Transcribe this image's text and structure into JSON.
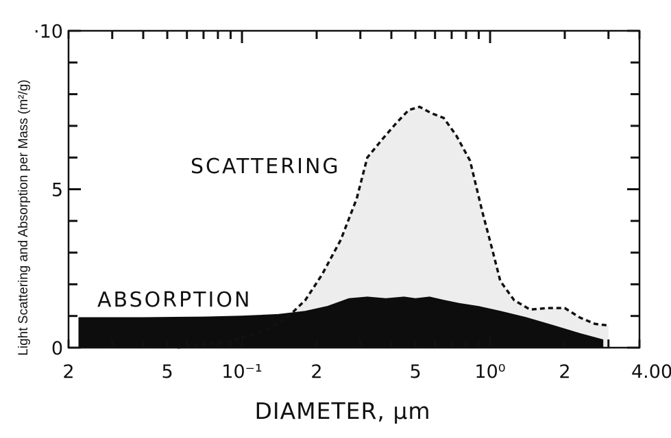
{
  "chart_data": {
    "type": "area",
    "title": "",
    "xlabel": "DIAMETER, μm",
    "ylabel": "Light Scattering and Absorption per Mass (m²/g)",
    "x_scale": "log",
    "xlim": [
      0.02,
      4.0
    ],
    "ylim": [
      0,
      10
    ],
    "x_ticks": [
      {
        "value": 0.02,
        "label": "2"
      },
      {
        "value": 0.05,
        "label": "5"
      },
      {
        "value": 0.1,
        "label": "10⁻¹"
      },
      {
        "value": 0.2,
        "label": "2"
      },
      {
        "value": 0.5,
        "label": "5"
      },
      {
        "value": 1.0,
        "label": "10⁰"
      },
      {
        "value": 2.0,
        "label": "2"
      },
      {
        "value": 4.0,
        "label": "4.00"
      }
    ],
    "y_ticks": [
      {
        "value": 0,
        "label": "0"
      },
      {
        "value": 5,
        "label": "5"
      },
      {
        "value": 10,
        "label": "·10"
      }
    ],
    "grid": false,
    "legend": "none",
    "series": [
      {
        "name": "SCATTERING",
        "style": "dashed line, light gray fill",
        "color": "#111111",
        "fill": "#ededed",
        "x": [
          0.055,
          0.07,
          0.09,
          0.1,
          0.12,
          0.15,
          0.18,
          0.21,
          0.25,
          0.29,
          0.32,
          0.37,
          0.42,
          0.47,
          0.52,
          0.58,
          0.65,
          0.73,
          0.83,
          0.93,
          1.02,
          1.1,
          1.25,
          1.45,
          1.7,
          2.0,
          2.3,
          2.65,
          3.0
        ],
        "values": [
          0.0,
          0.1,
          0.2,
          0.3,
          0.5,
          0.9,
          1.5,
          2.3,
          3.4,
          4.7,
          6.0,
          6.6,
          7.1,
          7.5,
          7.6,
          7.4,
          7.25,
          6.7,
          5.9,
          4.3,
          3.1,
          2.1,
          1.5,
          1.2,
          1.25,
          1.25,
          0.95,
          0.75,
          0.7
        ]
      },
      {
        "name": "ABSORPTION",
        "style": "solid black fill",
        "color": "#0d0d0d",
        "x": [
          0.022,
          0.04,
          0.07,
          0.1,
          0.14,
          0.18,
          0.22,
          0.27,
          0.32,
          0.38,
          0.45,
          0.5,
          0.57,
          0.65,
          0.75,
          0.9,
          1.1,
          1.4,
          1.8,
          2.3,
          2.85
        ],
        "values": [
          0.95,
          0.95,
          0.97,
          1.0,
          1.05,
          1.15,
          1.3,
          1.55,
          1.6,
          1.55,
          1.6,
          1.55,
          1.6,
          1.5,
          1.4,
          1.3,
          1.15,
          0.95,
          0.7,
          0.45,
          0.25
        ]
      }
    ]
  }
}
